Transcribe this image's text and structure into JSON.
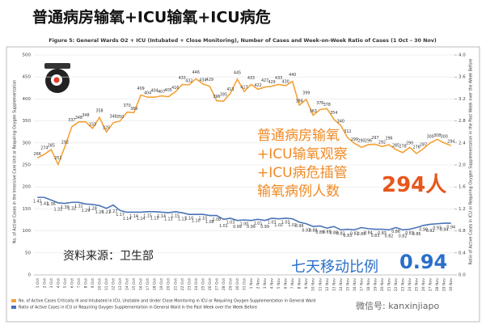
{
  "heading": "普通病房输氧+ICU输氧+ICU病危",
  "chart_data": {
    "type": "line",
    "title": "Figure 5: General Wards O2 + ICU (Intubated + Close Monitoring), Number of Cases and Week-on-Week Ratio of Cases (1 Oct – 30 Nov)",
    "ylabel": "No. of Active Cases in the Intensive Care Unit or Requiring Oxygen Supplementation",
    "y2label": "Ratio of Active Cases in ICU or Requiring Oxygen Supplementation in the Past Week over the Week Before",
    "categories": [
      "1 Oct",
      "2 Oct",
      "3 Oct",
      "4 Oct",
      "5 Oct",
      "6 Oct",
      "7 Oct",
      "8 Oct",
      "9 Oct",
      "10 Oct",
      "11 Oct",
      "12 Oct",
      "13 Oct",
      "14 Oct",
      "15 Oct",
      "16 Oct",
      "17 Oct",
      "18 Oct",
      "19 Oct",
      "20 Oct",
      "21 Oct",
      "22 Oct",
      "23 Oct",
      "24 Oct",
      "25 Oct",
      "26 Oct",
      "27 Oct",
      "28 Oct",
      "29 Oct",
      "30 Oct",
      "31 Oct",
      "1 Nov",
      "2 Nov",
      "3 Nov",
      "4 Nov",
      "5 Nov",
      "6 Nov",
      "7 Nov",
      "8 Nov",
      "9 Nov",
      "10 Nov",
      "11 Nov",
      "12 Nov",
      "13 Nov",
      "14 Nov",
      "15 Nov",
      "16 Nov",
      "17 Nov",
      "18 Nov",
      "19 Nov",
      "20 Nov",
      "21 Nov",
      "22 Nov",
      "23 Nov",
      "24 Nov",
      "25 Nov",
      "26 Nov",
      "27 Nov",
      "28 Nov",
      "29 Nov",
      "30 Nov"
    ],
    "series": [
      {
        "name": "No. of Active Cases Critically Ill and Intubated in ICU, Unstable and Under Close Monitoring in ICU or Requiring Oxygen Supplementation in General Ward",
        "color": "#f4a236",
        "values": [
          266,
          274,
          285,
          251,
          292,
          337,
          348,
          348,
          333,
          358,
          325,
          346,
          350,
          370,
          369,
          409,
          404,
          404,
          407,
          405,
          416,
          433,
          432,
          446,
          434,
          429,
          396,
          395,
          413,
          445,
          417,
          433,
          422,
          427,
          429,
          433,
          430,
          440,
          386,
          399,
          363,
          376,
          378,
          354,
          340,
          312,
          299,
          290,
          296,
          297,
          292,
          296,
          285,
          278,
          290,
          276,
          287,
          300,
          308,
          300,
          294
        ]
      },
      {
        "name": "Ratio of Active Cases in ICU or Requiring Oxygen Supplementation in General Ward in the Past Week over the Week Before",
        "color": "#4a72b8",
        "axis": "y2",
        "values": [
          1.41,
          1.41,
          1.36,
          1.31,
          1.3,
          1.32,
          1.32,
          1.29,
          1.28,
          1.26,
          1.21,
          1.27,
          1.17,
          1.14,
          1.14,
          1.14,
          1.15,
          1.15,
          1.14,
          1.13,
          1.15,
          1.13,
          1.1,
          1.1,
          1.1,
          1.08,
          1.08,
          1.01,
          1.03,
          0.99,
          1,
          0.99,
          1.01,
          0.99,
          1.03,
          1.02,
          1.03,
          1.02,
          0.96,
          0.93,
          0.88,
          0.89,
          0.85,
          0.88,
          0.82,
          0.83,
          0.82,
          0.86,
          0.84,
          0.83,
          0.83,
          0.82,
          0.86,
          0.82,
          0.83,
          0.86,
          0.9,
          0.92,
          0.93,
          0.94,
          0.94
        ],
        "value_labels": [
          "1.41",
          "1.41",
          "1.36",
          "1.31",
          "1.30",
          "1.32",
          "1.32",
          "1.29",
          "1.28",
          "1.26",
          "1.21",
          "1.27",
          "1.17",
          "1.14",
          "1.14",
          "1.14",
          "1.15",
          "1.15",
          "1.14",
          "1.13",
          "1.15",
          "1.13",
          "1.10",
          "1.10",
          "1.10",
          "1.08",
          "1.08",
          "1.01",
          "1.03",
          "0.99",
          "1.00",
          "0.99",
          "1.01",
          "0.99",
          "1.03",
          "1.02",
          "1.03",
          "1.02",
          "0.96",
          "0.93",
          "0.88",
          "0.89",
          "0.85",
          "0.88",
          "0.82",
          "0.83",
          "0.82",
          "0.86",
          "0.84",
          "0.83",
          "0.83",
          "0.82",
          "0.86",
          "0.82",
          "0.83",
          "0.86",
          "0.90",
          "0.92",
          "0.93",
          "0.94",
          "0.94"
        ]
      }
    ],
    "ylim": [
      0,
      500
    ],
    "yticks": [
      0,
      50,
      100,
      150,
      200,
      250,
      300,
      350,
      400,
      450,
      500
    ],
    "y2lim": [
      0,
      4
    ],
    "y2ticks": [
      {
        "value": 0,
        "label": "0.0"
      },
      0.4,
      0.8,
      1.2,
      1.6,
      {
        "value": 2,
        "label": "2.0"
      },
      2.4,
      2.8,
      3.2,
      3.6,
      {
        "value": 4,
        "label": "4.0"
      }
    ]
  },
  "annotations": {
    "cases_note": [
      "普通病房输氧",
      "+ICU输氧观察",
      "+ICU病危插管",
      "输氧病例人数"
    ],
    "cases_value": "294人",
    "source": "资料来源：卫生部",
    "ratio_label": "七天移动比例",
    "ratio_value": "0.94",
    "watermark": "微信号: kanxinjiapo"
  }
}
